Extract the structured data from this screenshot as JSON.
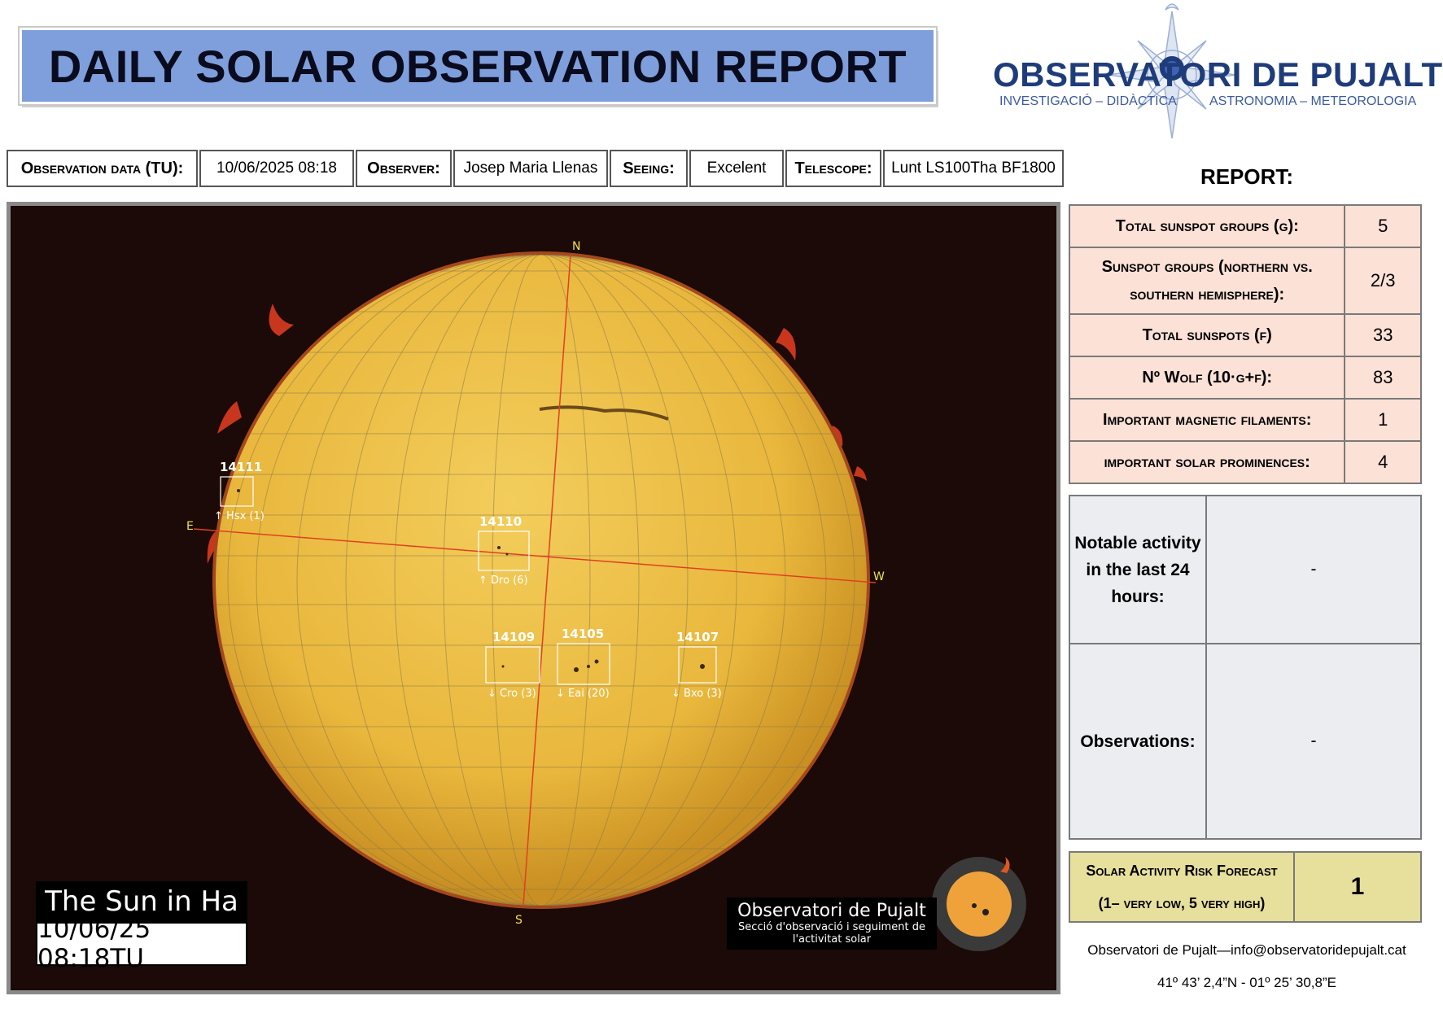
{
  "title": "DAILY SOLAR OBSERVATION REPORT",
  "logo": {
    "name": "OBSERVATORI DE PUJALT",
    "subtitle_left": "INVESTIGACIÓ – DIDÀCTICA",
    "subtitle_right": "ASTRONOMIA – METEOROLOGIA",
    "icon": "compass-rose-icon",
    "color": "#1f3c7a"
  },
  "info": {
    "date_label": "Observation data (TU):",
    "date_value": "10/06/2025 08:18",
    "observer_label": "Observer:",
    "observer_value": "Josep Maria Llenas",
    "seeing_label": "Seeing:",
    "seeing_value": "Excelent",
    "telescope_label": "Telescope:",
    "telescope_value": "Lunt LS100Tha BF1800"
  },
  "image": {
    "caption_title": "The Sun in Ha",
    "caption_date": "10/06/25 08:18TU",
    "watermark_name": "Observatori de Pujalt",
    "watermark_sub_1": "Secció d'observació i seguiment de",
    "watermark_sub_2": "l'activitat solar",
    "cardinal": {
      "n": "N",
      "s": "S",
      "e": "E",
      "w": "W"
    },
    "regions": [
      {
        "id": "14111",
        "cls": "↑ Hsx (1)"
      },
      {
        "id": "14110",
        "cls": "↑ Dro (6)"
      },
      {
        "id": "14109",
        "cls": "↓ Cro (3)"
      },
      {
        "id": "14105",
        "cls": "↓ Eai (20)"
      },
      {
        "id": "14107",
        "cls": "↓ Bxo (3)"
      }
    ],
    "disk_color": "#e9b73c"
  },
  "report": {
    "heading": "REPORT:",
    "rows": [
      {
        "label": "Total sunspot groups (g):",
        "value": "5"
      },
      {
        "label_1": "Sunspot groups (northern vs.",
        "label_2": "southern hemisphere):",
        "value": "2/3"
      },
      {
        "label": "Total sunspots (f)",
        "value": "33"
      },
      {
        "label": "Nº Wolf (10·g+f):",
        "value": "83"
      },
      {
        "label": "Important magnetic filaments:",
        "value": "1"
      },
      {
        "label": "important solar prominences:",
        "value": "4"
      }
    ],
    "notable_label_1": "Notable activity",
    "notable_label_2": "in the last 24",
    "notable_label_3": "hours:",
    "notable_value": "-",
    "observations_label": "Observations:",
    "observations_value": "-",
    "risk_label_1": "Solar Activity Risk Forecast",
    "risk_label_2": "(1– very low, 5 very high)",
    "risk_value": "1",
    "colors": {
      "report_bg": "#fbe1d6",
      "notes_bg": "#ecedf1",
      "risk_bg": "#e7df9c"
    }
  },
  "footer": {
    "contact": "Observatori de Pujalt—info@observatoridepujalt.cat",
    "coords": "41º 43’ 2,4”N - 01º 25’ 30,8”E"
  }
}
